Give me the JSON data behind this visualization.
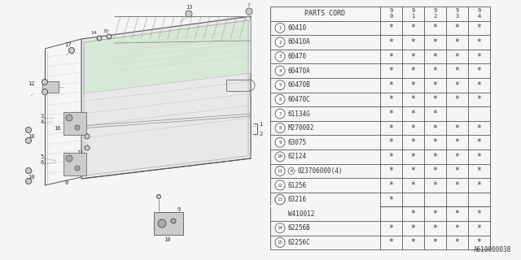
{
  "figure_code": "A610000038",
  "bg_color": "#f0f0f0",
  "table_rows": [
    {
      "num": "1",
      "code": "60410",
      "stars": [
        1,
        1,
        1,
        1,
        1
      ]
    },
    {
      "num": "2",
      "code": "60410A",
      "stars": [
        1,
        1,
        1,
        1,
        1
      ]
    },
    {
      "num": "3",
      "code": "60470",
      "stars": [
        1,
        1,
        1,
        1,
        1
      ]
    },
    {
      "num": "4",
      "code": "60470A",
      "stars": [
        1,
        1,
        1,
        1,
        1
      ]
    },
    {
      "num": "5",
      "code": "60470B",
      "stars": [
        1,
        1,
        1,
        1,
        1
      ]
    },
    {
      "num": "6",
      "code": "60470C",
      "stars": [
        1,
        1,
        1,
        1,
        1
      ]
    },
    {
      "num": "7",
      "code": "61134G",
      "stars": [
        1,
        1,
        1,
        0,
        0
      ]
    },
    {
      "num": "8",
      "code": "M270002",
      "stars": [
        1,
        1,
        1,
        1,
        1
      ]
    },
    {
      "num": "9",
      "code": "63075",
      "stars": [
        1,
        1,
        1,
        1,
        1
      ]
    },
    {
      "num": "10",
      "code": "62124",
      "stars": [
        1,
        1,
        1,
        1,
        1
      ]
    },
    {
      "num": "11",
      "code": "023706000(4)",
      "stars": [
        1,
        1,
        1,
        1,
        1
      ],
      "n_prefix": true
    },
    {
      "num": "12",
      "code": "61256",
      "stars": [
        1,
        1,
        1,
        1,
        1
      ]
    },
    {
      "num": "13",
      "code": "63216",
      "stars": [
        1,
        0,
        0,
        0,
        0
      ],
      "row2code": "W410012",
      "row2stars": [
        0,
        1,
        1,
        1,
        1
      ]
    },
    {
      "num": "14",
      "code": "62256B",
      "stars": [
        1,
        1,
        1,
        1,
        1
      ]
    },
    {
      "num": "15",
      "code": "62256C",
      "stars": [
        1,
        1,
        1,
        1,
        1
      ]
    }
  ],
  "year_cols": [
    "9\n0",
    "9\n1",
    "9\n2",
    "9\n3",
    "9\n4"
  ]
}
